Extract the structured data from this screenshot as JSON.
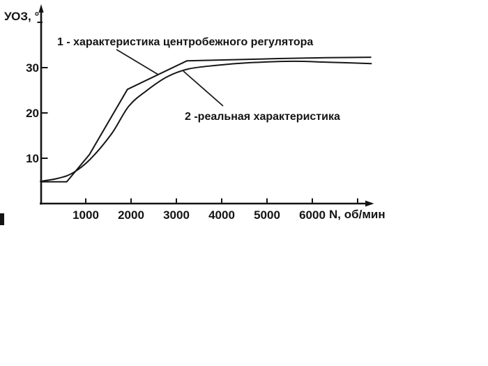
{
  "chart_data": {
    "type": "line",
    "title": "",
    "xlabel": "N, об/мин",
    "ylabel": "УОЗ, °",
    "xlim": [
      0,
      7300
    ],
    "ylim": [
      0,
      43
    ],
    "grid": false,
    "legend_position": "none",
    "x_ticks": [
      1000,
      2000,
      3000,
      4000,
      5000,
      6000
    ],
    "x_ticks_minor_unlabeled": [
      7000
    ],
    "y_ticks": [
      10,
      20,
      30
    ],
    "y_ticks_minor_unlabeled": [
      40
    ],
    "annotations": [
      {
        "text": "1 - характеристика центробежного регулятора",
        "points_to_series": 1
      },
      {
        "text": "2 -реальная характеристика",
        "points_to_series": 2
      }
    ],
    "series": [
      {
        "name": "1 - характеристика центробежного регулятора",
        "style": "polyline",
        "x_unit": "об/мин",
        "y_unit": "градусы УОЗ",
        "points": [
          [
            0,
            4.8
          ],
          [
            580,
            4.8
          ],
          [
            1080,
            10.8
          ],
          [
            1920,
            25.2
          ],
          [
            3230,
            31.5
          ],
          [
            5260,
            32.0
          ],
          [
            6300,
            32.2
          ],
          [
            7300,
            32.3
          ]
        ]
      },
      {
        "name": "2 -реальная характеристика",
        "style": "smooth",
        "x_unit": "об/мин",
        "y_unit": "градусы УОЗ",
        "points": [
          [
            0,
            4.9
          ],
          [
            400,
            5.6
          ],
          [
            720,
            6.8
          ],
          [
            1100,
            9.8
          ],
          [
            1570,
            15.4
          ],
          [
            1950,
            21.5
          ],
          [
            2340,
            24.9
          ],
          [
            2800,
            28.0
          ],
          [
            3260,
            29.7
          ],
          [
            3880,
            30.5
          ],
          [
            4650,
            31.1
          ],
          [
            5570,
            31.4
          ],
          [
            6340,
            31.2
          ],
          [
            7300,
            30.9
          ]
        ]
      }
    ],
    "ink_color": "#161616",
    "paper_color": "#ffffff"
  }
}
